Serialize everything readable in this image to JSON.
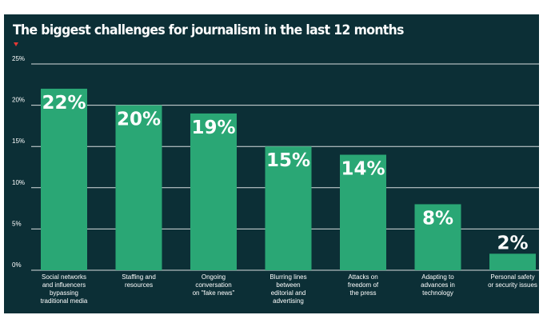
{
  "colors": {
    "background": "#0c2f36",
    "bar": "#2aa775",
    "grid": "#d7dedf",
    "marker": "#e53935",
    "text": "#ffffff"
  },
  "chart_data": {
    "type": "bar",
    "title": "The biggest challenges for journalism in the last 12 months",
    "xlabel": "",
    "ylabel": "",
    "ylim": [
      0,
      25
    ],
    "yticks": [
      0,
      5,
      10,
      15,
      20,
      25
    ],
    "ytick_labels": [
      "0%",
      "5%",
      "10%",
      "15%",
      "20%",
      "25%"
    ],
    "grid": true,
    "categories": [
      "Social networks and influencers bypassing traditional media",
      "Staffing and resources",
      "Ongoing conversation on \"fake news\"",
      "Blurring lines between editorial and advertising",
      "Attacks on freedom of the press",
      "Adapting to advances in technology",
      "Personal safety or security issues"
    ],
    "category_lines": [
      [
        "Social networks",
        "and influencers",
        "bypassing",
        "traditional media"
      ],
      [
        "Staffing and",
        "resources"
      ],
      [
        "Ongoing",
        "conversation",
        "on \"fake news\""
      ],
      [
        "Blurring lines",
        "between",
        "editorial and",
        "advertising"
      ],
      [
        "Attacks on",
        "freedom of",
        "the press"
      ],
      [
        "Adapting to",
        "advances in",
        "technology"
      ],
      [
        "Personal safety",
        "or security issues"
      ]
    ],
    "values": [
      22,
      20,
      19,
      15,
      14,
      8,
      2
    ],
    "value_labels": [
      "22%",
      "20%",
      "19%",
      "15%",
      "14%",
      "8%",
      "2%"
    ]
  }
}
